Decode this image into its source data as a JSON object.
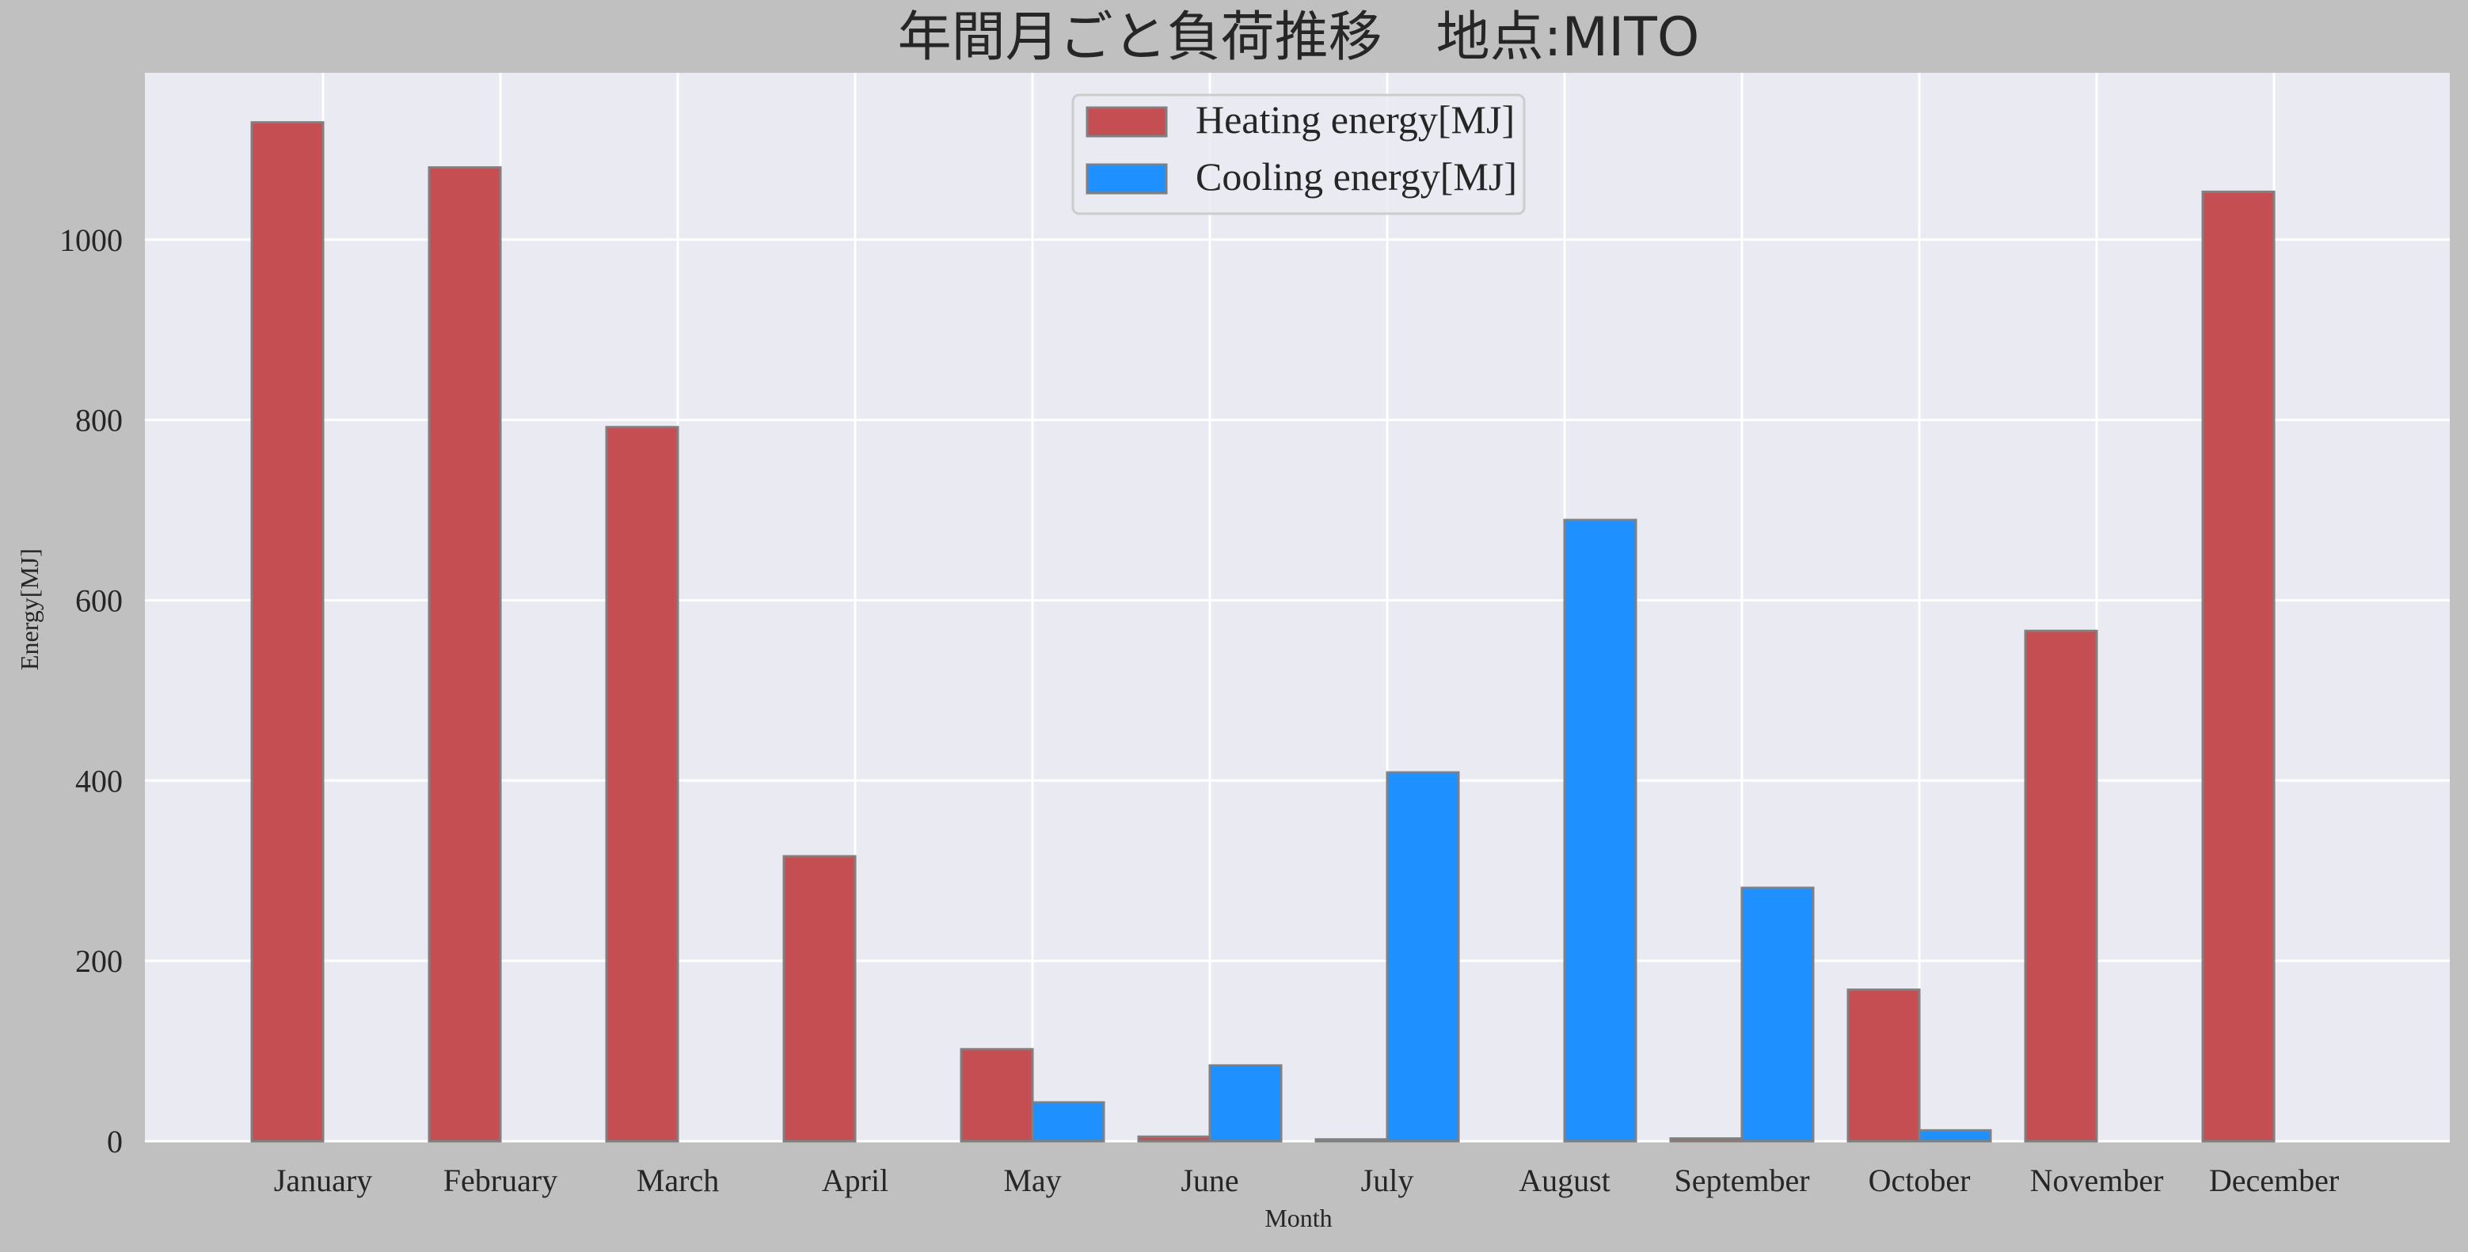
{
  "chart_data": {
    "type": "bar",
    "title": "年間月ごと負荷推移　地点:MITO",
    "xlabel": "Month",
    "ylabel": "Energy[MJ]",
    "categories": [
      "January",
      "February",
      "March",
      "April",
      "May",
      "June",
      "July",
      "August",
      "September",
      "October",
      "November",
      "December"
    ],
    "ylim": [
      0,
      1185
    ],
    "yticks": [
      0,
      200,
      400,
      600,
      800,
      1000
    ],
    "grid": true,
    "legend_position": "top-center",
    "series": [
      {
        "name": "Heating energy[MJ]",
        "color": "#c44e52",
        "values": [
          1130,
          1080,
          792,
          316,
          102,
          5,
          2,
          0,
          3,
          168,
          566,
          1053
        ]
      },
      {
        "name": "Cooling energy[MJ]",
        "color": "#1e90ff",
        "values": [
          0,
          0,
          0,
          0,
          43,
          84,
          409,
          689,
          281,
          12,
          0,
          0
        ]
      }
    ],
    "colors": {
      "page_background": "#c0c0c0",
      "plot_background": "#eaeaf2",
      "grid": "#ffffff",
      "bar_edge": "#808080"
    }
  }
}
